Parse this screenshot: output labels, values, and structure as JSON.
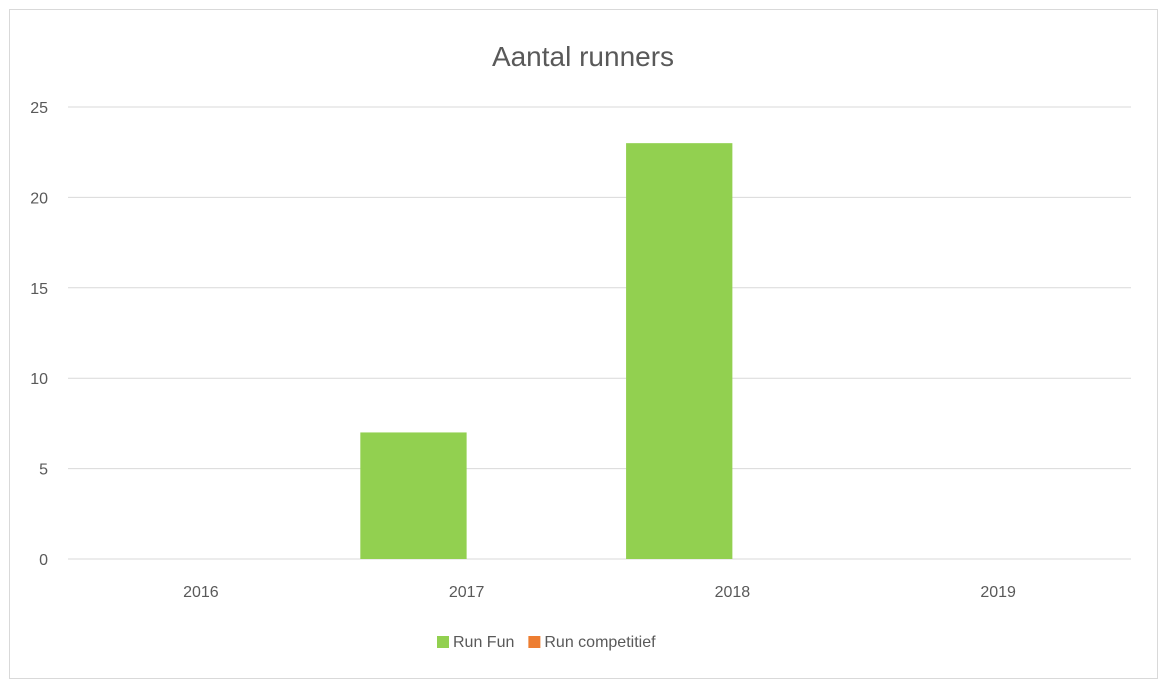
{
  "chart_data": {
    "type": "bar",
    "title": "Aantal runners",
    "xlabel": "",
    "ylabel": "",
    "categories": [
      "2016",
      "2017",
      "2018",
      "2019"
    ],
    "series": [
      {
        "name": "Run Fun",
        "color": "#92d050",
        "values": [
          0,
          7,
          23,
          0
        ]
      },
      {
        "name": "Run competitief",
        "color": "#ed7d31",
        "values": [
          0,
          0,
          0,
          0
        ]
      }
    ],
    "ylim": [
      0,
      25
    ],
    "yticks": [
      0,
      5,
      10,
      15,
      20,
      25
    ],
    "grid": true,
    "legend_position": "bottom"
  }
}
